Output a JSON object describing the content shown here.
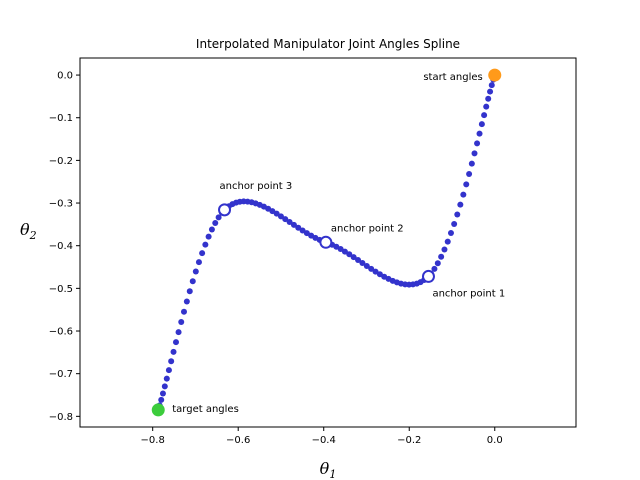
{
  "chart_data": {
    "type": "scatter",
    "title": "Interpolated Manipulator Joint Angles Spline",
    "xlabel_symbol": "θ",
    "xlabel_sub": "1",
    "ylabel_symbol": "θ",
    "ylabel_sub": "2",
    "xlim": [
      -0.97,
      0.19
    ],
    "ylim": [
      -0.825,
      0.04
    ],
    "grid": false,
    "xticks": [
      -0.8,
      -0.6,
      -0.4,
      -0.2,
      0.0
    ],
    "xtick_labels": [
      "−0.8",
      "−0.6",
      "−0.4",
      "−0.2",
      "0.0"
    ],
    "yticks": [
      0.0,
      -0.1,
      -0.2,
      -0.3,
      -0.4,
      -0.5,
      -0.6,
      -0.7,
      -0.8
    ],
    "ytick_labels": [
      "0.0",
      "−0.1",
      "−0.2",
      "−0.3",
      "−0.4",
      "−0.5",
      "−0.6",
      "−0.7",
      "−0.8"
    ],
    "spline_color": "#3333cc",
    "spline_knots": [
      {
        "x": 0.0,
        "y": 0.0
      },
      {
        "x": -0.155,
        "y": -0.472
      },
      {
        "x": -0.395,
        "y": -0.392
      },
      {
        "x": -0.632,
        "y": -0.316
      },
      {
        "x": -0.787,
        "y": -0.785
      }
    ],
    "spline_point_count": 100,
    "anchor_points": [
      {
        "label": "anchor point 1",
        "x": -0.155,
        "y": -0.472
      },
      {
        "label": "anchor point 2",
        "x": -0.395,
        "y": -0.392
      },
      {
        "label": "anchor point 3",
        "x": -0.632,
        "y": -0.316
      }
    ],
    "start": {
      "label": "start angles",
      "x": 0.0,
      "y": 0.0,
      "color": "#ff9a1a"
    },
    "target": {
      "label": "target angles",
      "x": -0.787,
      "y": -0.785,
      "color": "#3ccc3c"
    }
  }
}
